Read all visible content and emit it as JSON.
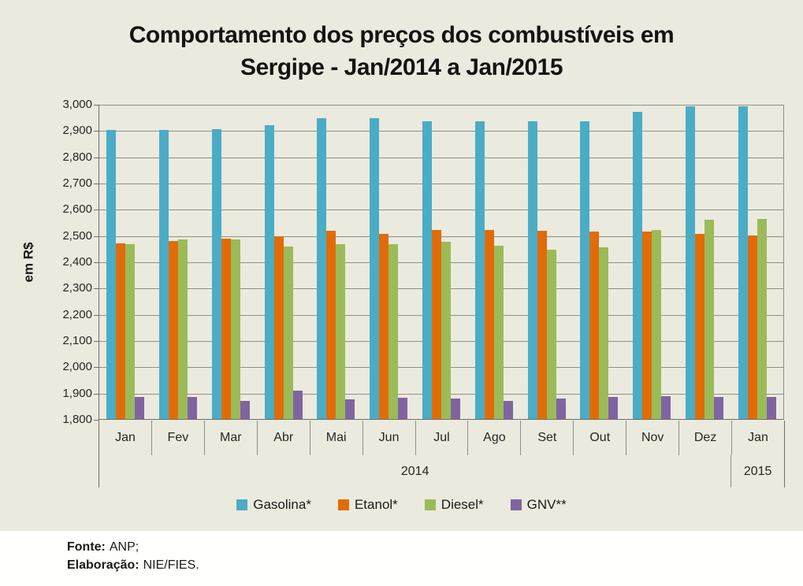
{
  "title_lines": [
    "Comportamento dos preços dos combustíveis em",
    "Sergipe - Jan/2014 a Jan/2015"
  ],
  "footer": {
    "fonte_label": "Fonte:",
    "fonte_value": "ANP;",
    "elaboracao_label": "Elaboração:",
    "elaboracao_value": "NIE/FIES."
  },
  "chart_data": {
    "type": "bar",
    "title": "Comportamento dos preços dos combustíveis em Sergipe - Jan/2014 a Jan/2015",
    "xlabel": "",
    "ylabel": "em R$",
    "ylim": [
      1800,
      3000
    ],
    "ytick_step": 100,
    "ytick_labels": [
      "3,000",
      "2,900",
      "2,800",
      "2,700",
      "2,600",
      "2,500",
      "2,400",
      "2,300",
      "2,200",
      "2,100",
      "2,000",
      "1,900",
      "1,800"
    ],
    "grid": true,
    "legend_position": "bottom",
    "categories": [
      "Jan",
      "Fev",
      "Mar",
      "Abr",
      "Mai",
      "Jun",
      "Jul",
      "Ago",
      "Set",
      "Out",
      "Nov",
      "Dez",
      "Jan"
    ],
    "year_groups": [
      {
        "label": "2014",
        "span": 12
      },
      {
        "label": "2015",
        "span": 1
      }
    ],
    "series": [
      {
        "name": "Gasolina*",
        "color": "#4BACC6",
        "values": [
          2900,
          2900,
          2905,
          2920,
          2945,
          2945,
          2935,
          2935,
          2935,
          2935,
          2970,
          2990,
          2990
        ]
      },
      {
        "name": "Etanol*",
        "color": "#E06C09",
        "values": [
          2470,
          2478,
          2486,
          2496,
          2518,
          2506,
          2520,
          2520,
          2516,
          2513,
          2515,
          2505,
          2500
        ]
      },
      {
        "name": "Diesel*",
        "color": "#9BBB59",
        "values": [
          2465,
          2484,
          2483,
          2458,
          2465,
          2466,
          2476,
          2460,
          2445,
          2455,
          2520,
          2560,
          2562
        ]
      },
      {
        "name": "GNV**",
        "color": "#8064A2",
        "values": [
          1883,
          1884,
          1870,
          1907,
          1875,
          1880,
          1877,
          1868,
          1879,
          1885,
          1887,
          1883,
          1884
        ]
      }
    ]
  }
}
